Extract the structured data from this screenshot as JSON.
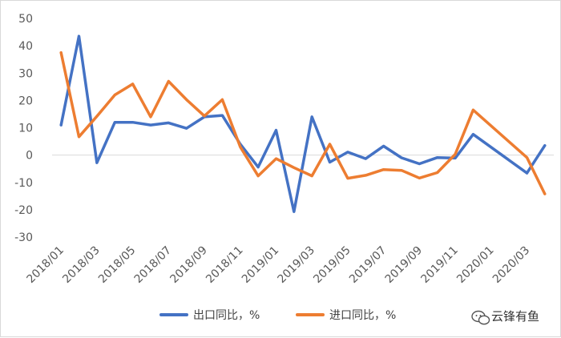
{
  "chart_data": {
    "type": "line",
    "title": "",
    "xlabel": "",
    "ylabel": "",
    "ylim": [
      -30,
      50
    ],
    "yticks": [
      50,
      40,
      30,
      20,
      10,
      0,
      -10,
      -20,
      -30
    ],
    "grid": false,
    "legend_position": "bottom",
    "x": [
      "2018/01",
      "2018/02",
      "2018/03",
      "2018/04",
      "2018/05",
      "2018/06",
      "2018/07",
      "2018/08",
      "2018/09",
      "2018/10",
      "2018/11",
      "2018/12",
      "2019/01",
      "2019/02",
      "2019/03",
      "2019/04",
      "2019/05",
      "2019/06",
      "2019/07",
      "2019/08",
      "2019/09",
      "2019/10",
      "2019/11",
      "2019/12",
      "2020/01",
      "2020/02",
      "2020/03",
      "2020/04"
    ],
    "x_tick_labels": [
      "2018/01",
      "2018/03",
      "2018/05",
      "2018/07",
      "2018/09",
      "2018/11",
      "2019/01",
      "2019/03",
      "2019/05",
      "2019/07",
      "2019/09",
      "2019/11",
      "2020/01",
      "2020/03"
    ],
    "series": [
      {
        "name": "出口同比，%",
        "color": "#4472c4",
        "values": [
          11.0,
          43.5,
          -2.8,
          12.0,
          12.0,
          11.0,
          11.8,
          9.8,
          14.0,
          14.5,
          4.0,
          -4.4,
          9.1,
          -20.7,
          14.0,
          -2.6,
          1.1,
          -1.3,
          3.3,
          -1.0,
          -3.2,
          -0.9,
          -1.1,
          7.6,
          null,
          null,
          -6.6,
          3.5
        ]
      },
      {
        "name": "进口同比，%",
        "color": "#ed7d31",
        "values": [
          37.5,
          6.7,
          14.2,
          22.0,
          26.0,
          14.0,
          27.0,
          20.3,
          14.3,
          20.3,
          3.0,
          -7.6,
          -1.3,
          -4.6,
          -7.6,
          4.0,
          -8.5,
          -7.4,
          -5.3,
          -5.6,
          -8.4,
          -6.4,
          0.3,
          16.5,
          null,
          null,
          -0.9,
          -14.2
        ]
      }
    ]
  },
  "watermark": {
    "text": "云锋有鱼",
    "icon": "wechat-icon"
  }
}
